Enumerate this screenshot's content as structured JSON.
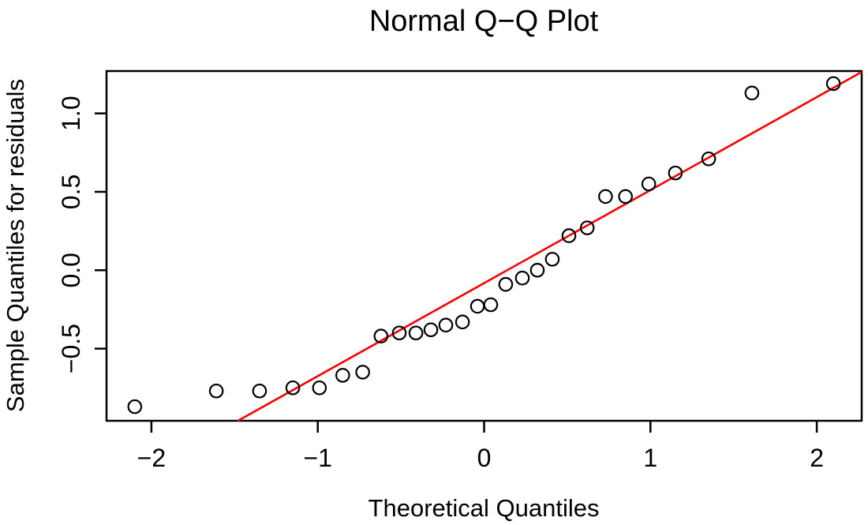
{
  "figure": {
    "background": "#ffffff"
  },
  "chart_data": {
    "type": "scatter",
    "subtype": "normal-qq-plot",
    "title": "Normal Q−Q Plot",
    "xlabel": "Theoretical Quantiles",
    "ylabel": "Sample Quantiles for residuals",
    "xlim": [
      -2.27,
      2.27
    ],
    "ylim": [
      -0.96,
      1.27
    ],
    "grid": false,
    "x_ticks": {
      "values": [
        -2,
        -1,
        0,
        1,
        2
      ],
      "labels": [
        "−2",
        "−1",
        "0",
        "1",
        "2"
      ]
    },
    "y_ticks": {
      "values": [
        -0.5,
        0,
        0.5,
        1
      ],
      "labels": [
        "−0.5",
        "0.0",
        "0.5",
        "1.0"
      ]
    },
    "points": {
      "marker": "open-circle",
      "color": "#000000",
      "theoretical": [
        -2.1,
        -1.61,
        -1.35,
        -1.15,
        -0.99,
        -0.85,
        -0.73,
        -0.62,
        -0.51,
        -0.41,
        -0.32,
        -0.23,
        -0.13,
        -0.04,
        0.04,
        0.13,
        0.23,
        0.32,
        0.41,
        0.51,
        0.62,
        0.73,
        0.85,
        0.99,
        1.15,
        1.35,
        1.61,
        2.1
      ],
      "sample": [
        -0.87,
        -0.77,
        -0.77,
        -0.75,
        -0.75,
        -0.67,
        -0.65,
        -0.42,
        -0.4,
        -0.4,
        -0.38,
        -0.35,
        -0.33,
        -0.23,
        -0.22,
        -0.09,
        -0.05,
        0.0,
        0.07,
        0.22,
        0.27,
        0.47,
        0.47,
        0.55,
        0.62,
        0.71,
        1.13,
        1.19
      ]
    },
    "reference_line": {
      "slope": 0.593,
      "intercept": -0.082,
      "color": "#ff0000"
    },
    "colors": {
      "axis": "#000000",
      "text": "#000000",
      "line": "#ff0000"
    }
  }
}
